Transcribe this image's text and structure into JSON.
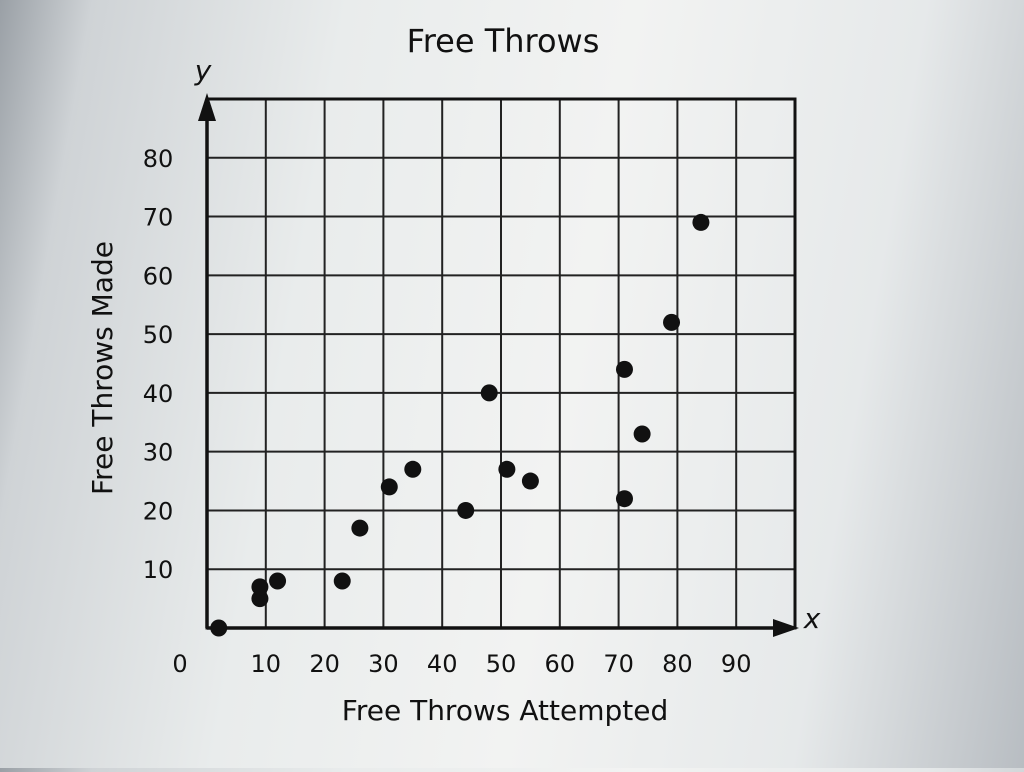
{
  "chart_data": {
    "type": "scatter",
    "title": "Free Throws",
    "xlabel": "Free Throws Attempted",
    "ylabel": "Free Throws Made",
    "x_axis_letter": "x",
    "y_axis_letter": "y",
    "origin_label": "0",
    "xlim": [
      0,
      100
    ],
    "ylim": [
      0,
      90
    ],
    "xticks": [
      10,
      20,
      30,
      40,
      50,
      60,
      70,
      80,
      90
    ],
    "yticks": [
      10,
      20,
      30,
      40,
      50,
      60,
      70,
      80
    ],
    "grid": true,
    "point_color": "#111111",
    "points": [
      {
        "x": 2,
        "y": 0
      },
      {
        "x": 9,
        "y": 5
      },
      {
        "x": 9,
        "y": 7
      },
      {
        "x": 12,
        "y": 8
      },
      {
        "x": 23,
        "y": 8
      },
      {
        "x": 26,
        "y": 17
      },
      {
        "x": 31,
        "y": 24
      },
      {
        "x": 35,
        "y": 27
      },
      {
        "x": 44,
        "y": 20
      },
      {
        "x": 48,
        "y": 40
      },
      {
        "x": 51,
        "y": 27
      },
      {
        "x": 55,
        "y": 25
      },
      {
        "x": 71,
        "y": 22
      },
      {
        "x": 71,
        "y": 44
      },
      {
        "x": 74,
        "y": 33
      },
      {
        "x": 79,
        "y": 52
      },
      {
        "x": 84,
        "y": 69
      }
    ]
  }
}
